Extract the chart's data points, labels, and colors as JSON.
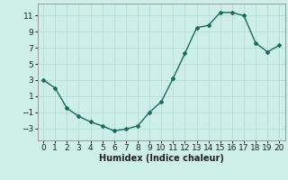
{
  "x": [
    0,
    1,
    2,
    3,
    4,
    5,
    6,
    7,
    8,
    9,
    10,
    11,
    12,
    13,
    14,
    15,
    16,
    17,
    18,
    19,
    20
  ],
  "y": [
    3,
    2,
    -0.5,
    -1.5,
    -2.2,
    -2.7,
    -3.3,
    -3.1,
    -2.7,
    -1.0,
    0.3,
    3.2,
    6.3,
    9.5,
    9.8,
    11.4,
    11.4,
    11.0,
    7.6,
    6.5,
    7.3
  ],
  "line_color": "#1a6b5a",
  "bg_color": "#ceeee8",
  "grid_color": "#b8ddd8",
  "xlabel": "Humidex (Indice chaleur)",
  "xlabel_fontsize": 7,
  "xlim": [
    -0.5,
    20.5
  ],
  "ylim": [
    -4.5,
    12.5
  ],
  "yticks": [
    -3,
    -1,
    1,
    3,
    5,
    7,
    9,
    11
  ],
  "xticks": [
    0,
    1,
    2,
    3,
    4,
    5,
    6,
    7,
    8,
    9,
    10,
    11,
    12,
    13,
    14,
    15,
    16,
    17,
    18,
    19,
    20
  ],
  "marker": "D",
  "marker_size": 2.0,
  "line_width": 1.0,
  "tick_fontsize": 6.5
}
